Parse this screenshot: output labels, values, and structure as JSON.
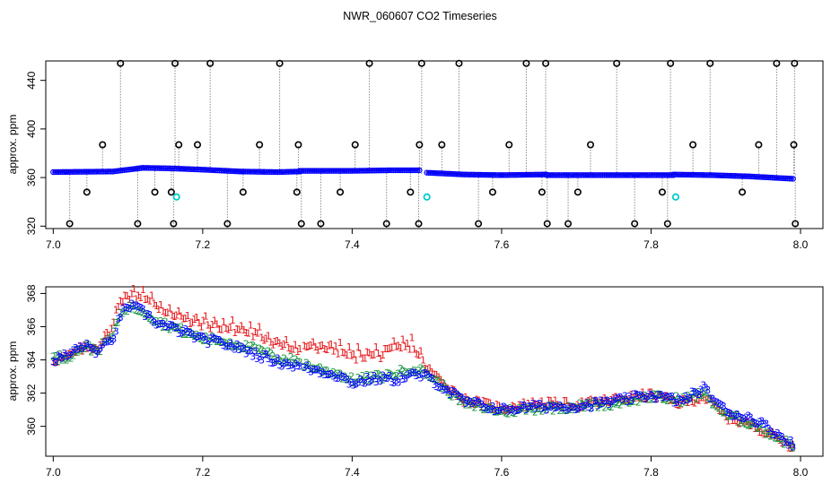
{
  "title": "NWR_060607  CO2 Timeseries",
  "chart_data": [
    {
      "type": "line",
      "panel": "top",
      "title": "NWR_060607  CO2 Timeseries",
      "xlabel": "",
      "ylabel": "approx. ppm",
      "xlim": [
        6.99,
        8.03
      ],
      "ylim": [
        318,
        456
      ],
      "xticks": [
        "7.0",
        "7.2",
        "7.4",
        "7.6",
        "7.8",
        "8.0"
      ],
      "yticks": [
        "320",
        "360",
        "400",
        "440"
      ],
      "baseline_segments": [
        {
          "x": [
            7.0,
            7.08,
            7.12,
            7.16,
            7.2,
            7.25,
            7.3,
            7.33
          ],
          "y": [
            364.5,
            365.0,
            368.0,
            367.5,
            366.5,
            365.0,
            364.5,
            365.0
          ]
        },
        {
          "x": [
            7.33,
            7.4,
            7.45,
            7.49
          ],
          "y": [
            365.5,
            365.5,
            366.0,
            366.0
          ]
        },
        {
          "x": [
            7.5,
            7.55,
            7.6,
            7.66
          ],
          "y": [
            364.0,
            362.5,
            362.0,
            362.5
          ]
        },
        {
          "x": [
            7.66,
            7.72,
            7.78,
            7.83
          ],
          "y": [
            362.0,
            362.0,
            362.0,
            362.0
          ]
        },
        {
          "x": [
            7.83,
            7.88,
            7.93,
            7.99
          ],
          "y": [
            362.5,
            362.0,
            361.0,
            359.0
          ]
        }
      ],
      "series_colors": [
        "#e41a1c",
        "#1a9641",
        "#0000ff"
      ],
      "high_excursions": [
        7.09,
        7.163,
        7.21,
        7.303,
        7.423,
        7.493,
        7.543,
        7.633,
        7.659,
        7.754,
        7.826,
        7.879,
        7.968,
        7.992
      ],
      "low_excursions": [
        7.022,
        7.113,
        7.161,
        7.233,
        7.332,
        7.358,
        7.446,
        7.489,
        7.569,
        7.661,
        7.689,
        7.778,
        7.822,
        7.993
      ],
      "mid_high_excursions": [
        7.066,
        7.168,
        7.193,
        7.276,
        7.328,
        7.404,
        7.49,
        7.52,
        7.61,
        7.719,
        7.856,
        7.944,
        7.991
      ],
      "mid_low_excursions": [
        7.045,
        7.136,
        7.158,
        7.254,
        7.326,
        7.384,
        7.478,
        7.588,
        7.654,
        7.702,
        7.815,
        7.922
      ],
      "flagged_points": [
        {
          "x": 7.165,
          "y": 344
        },
        {
          "x": 7.5,
          "y": 344
        },
        {
          "x": 7.833,
          "y": 344
        }
      ]
    },
    {
      "type": "line",
      "panel": "bottom",
      "xlabel": "",
      "ylabel": "approx. ppm",
      "xlim": [
        6.99,
        8.03
      ],
      "ylim": [
        358.2,
        368.4
      ],
      "xticks": [
        "7.0",
        "7.2",
        "7.4",
        "7.6",
        "7.8",
        "8.0"
      ],
      "yticks": [
        "360",
        "362",
        "364",
        "366",
        "368"
      ],
      "series": [
        {
          "name": "1",
          "color": "#e41a1c",
          "x": [
            7.0,
            7.02,
            7.04,
            7.06,
            7.08,
            7.09,
            7.1,
            7.12,
            7.14,
            7.16,
            7.18,
            7.2,
            7.22,
            7.25,
            7.28,
            7.3,
            7.33,
            7.35,
            7.38,
            7.4,
            7.42,
            7.44,
            7.46,
            7.48,
            7.5,
            7.55,
            7.6,
            7.65,
            7.7,
            7.75,
            7.8,
            7.84,
            7.87,
            7.9,
            7.94,
            7.99
          ],
          "values": [
            364.0,
            364.2,
            364.7,
            364.8,
            366.0,
            367.6,
            367.8,
            367.9,
            367.1,
            366.8,
            366.3,
            366.2,
            366.0,
            365.8,
            365.4,
            365.0,
            364.5,
            364.8,
            364.6,
            364.2,
            364.3,
            364.3,
            364.7,
            364.9,
            363.5,
            361.6,
            361.1,
            361.4,
            361.3,
            361.6,
            361.9,
            361.4,
            361.8,
            360.6,
            360.0,
            358.8
          ]
        },
        {
          "name": "2",
          "color": "#1a9641",
          "x": [
            7.0,
            7.02,
            7.04,
            7.06,
            7.08,
            7.09,
            7.1,
            7.12,
            7.14,
            7.16,
            7.18,
            7.2,
            7.22,
            7.25,
            7.28,
            7.3,
            7.33,
            7.35,
            7.38,
            7.4,
            7.42,
            7.44,
            7.46,
            7.48,
            7.5,
            7.55,
            7.6,
            7.65,
            7.7,
            7.75,
            7.8,
            7.84,
            7.87,
            7.9,
            7.94,
            7.99
          ],
          "values": [
            364.1,
            364.2,
            364.8,
            364.6,
            365.5,
            366.8,
            367.2,
            367.0,
            366.3,
            366.0,
            365.6,
            365.3,
            365.2,
            364.9,
            364.5,
            364.1,
            363.9,
            363.5,
            363.2,
            362.8,
            362.9,
            363.0,
            363.2,
            363.5,
            363.2,
            361.4,
            360.9,
            361.1,
            361.2,
            361.4,
            361.8,
            361.6,
            362.0,
            360.7,
            360.1,
            358.8
          ]
        },
        {
          "name": "3",
          "color": "#0000ff",
          "x": [
            7.0,
            7.02,
            7.04,
            7.06,
            7.08,
            7.09,
            7.1,
            7.12,
            7.14,
            7.16,
            7.18,
            7.2,
            7.22,
            7.25,
            7.28,
            7.3,
            7.33,
            7.35,
            7.38,
            7.4,
            7.42,
            7.44,
            7.46,
            7.48,
            7.5,
            7.55,
            7.6,
            7.65,
            7.7,
            7.75,
            7.8,
            7.84,
            7.87,
            7.9,
            7.94,
            7.99
          ],
          "values": [
            364.0,
            364.3,
            364.9,
            364.5,
            365.3,
            366.7,
            367.3,
            366.9,
            366.2,
            365.9,
            365.6,
            365.2,
            365.1,
            364.7,
            364.2,
            363.9,
            363.6,
            363.4,
            363.1,
            362.6,
            362.8,
            362.9,
            362.8,
            363.1,
            363.0,
            361.5,
            361.0,
            361.2,
            361.2,
            361.5,
            361.9,
            361.5,
            362.3,
            360.9,
            360.4,
            358.9
          ]
        }
      ]
    }
  ]
}
